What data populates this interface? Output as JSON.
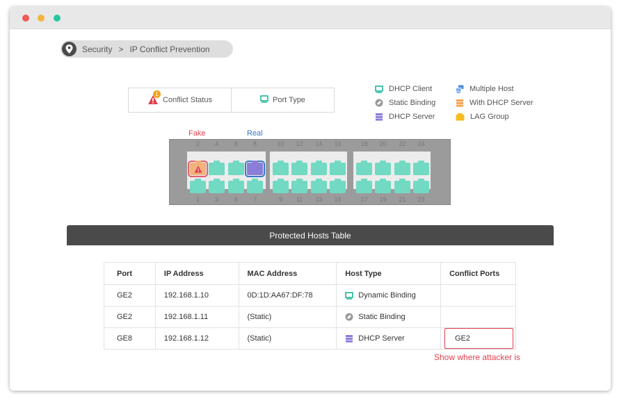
{
  "breadcrumb": {
    "section": "Security",
    "separator": ">",
    "page": "IP Conflict Prevention"
  },
  "modes": {
    "conflict_status": "Conflict Status",
    "port_type": "Port Type"
  },
  "legend": {
    "dhcp_client": "DHCP Client",
    "static_binding": "Static Binding",
    "dhcp_server": "DHCP Server",
    "multiple_host": "Multiple Host",
    "with_dhcp_server": "With DHCP Server",
    "lag_group": "LAG Group"
  },
  "switch": {
    "fake_label": "Fake",
    "real_label": "Real",
    "top_ports": [
      "2",
      "4",
      "6",
      "8",
      "10",
      "12",
      "14",
      "16",
      "18",
      "20",
      "22",
      "24"
    ],
    "bottom_ports": [
      "1",
      "3",
      "5",
      "7",
      "9",
      "11",
      "13",
      "15",
      "17",
      "19",
      "21",
      "23"
    ],
    "alert_count": "1",
    "alert_symbol": "!"
  },
  "table": {
    "title": "Protected Hosts Table",
    "columns": [
      "Port",
      "IP Address",
      "MAC Address",
      "Host Type",
      "Conflict Ports"
    ],
    "rows": [
      {
        "port": "GE2",
        "ip": "192.168.1.10",
        "mac": "0D:1D:AA67:DF:78",
        "host_type": "Dynamic Binding",
        "conflict": ""
      },
      {
        "port": "GE2",
        "ip": "192.168.1.11",
        "mac": "(Static)",
        "host_type": "Static Binding",
        "conflict": ""
      },
      {
        "port": "GE8",
        "ip": "192.168.1.12",
        "mac": "(Static)",
        "host_type": "DHCP Server",
        "conflict": "GE2"
      }
    ]
  },
  "note": "Show where attacker is",
  "colors": {
    "port": "#72d9c3",
    "fake": "#e0404f",
    "real": "#3a78c8",
    "dhcp_server": "#8b7ed8",
    "header": "#4a4a4a"
  }
}
